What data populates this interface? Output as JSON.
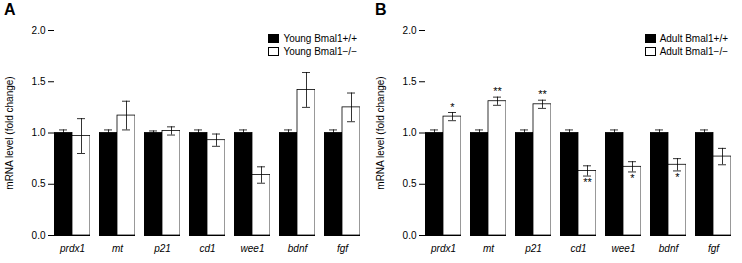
{
  "chart_data": [
    {
      "type": "bar",
      "title": "A",
      "categories": [
        "prdx1",
        "mt",
        "p21",
        "cd1",
        "wee1",
        "bdnf",
        "fgf"
      ],
      "series": [
        {
          "name": "Young Bmal1+/+",
          "color": "#000000",
          "values": [
            1.0,
            1.0,
            1.0,
            1.0,
            1.0,
            1.0,
            1.0
          ],
          "errors": [
            0.03,
            0.03,
            0.02,
            0.03,
            0.03,
            0.03,
            0.03
          ]
        },
        {
          "name": "Young Bmal1−/−",
          "color": "#ffffff",
          "values": [
            0.97,
            1.17,
            1.02,
            0.93,
            0.59,
            1.42,
            1.25
          ],
          "errors": [
            0.17,
            0.14,
            0.04,
            0.06,
            0.08,
            0.17,
            0.14
          ]
        }
      ],
      "ylabel": "mRNA level (fold change)",
      "ylim": [
        0.0,
        2.0
      ],
      "yticks": [
        {
          "value": 0.0,
          "label": "0.0"
        },
        0.5,
        {
          "value": 1.0,
          "label": "1.0"
        },
        1.5,
        {
          "value": 2.0,
          "label": "2.0"
        }
      ],
      "grid": false,
      "legend": "upper right",
      "annotations": []
    },
    {
      "type": "bar",
      "title": "B",
      "categories": [
        "prdx1",
        "mt",
        "p21",
        "cd1",
        "wee1",
        "bdnf",
        "fgf"
      ],
      "series": [
        {
          "name": "Adult Bmal1+/+",
          "color": "#000000",
          "values": [
            1.0,
            1.0,
            1.0,
            1.0,
            1.0,
            1.0,
            1.0
          ],
          "errors": [
            0.03,
            0.03,
            0.03,
            0.03,
            0.03,
            0.03,
            0.03
          ]
        },
        {
          "name": "Adult Bmal1−/−",
          "color": "#ffffff",
          "values": [
            1.16,
            1.31,
            1.28,
            0.63,
            0.67,
            0.69,
            0.77
          ],
          "errors": [
            0.04,
            0.04,
            0.04,
            0.05,
            0.05,
            0.06,
            0.08
          ]
        }
      ],
      "ylabel": "mRNA level (fold change)",
      "ylim": [
        0.0,
        2.0
      ],
      "yticks": [
        {
          "value": 0.0,
          "label": "0.0"
        },
        0.5,
        {
          "value": 1.0,
          "label": "1.0"
        },
        1.5,
        {
          "value": 2.0,
          "label": "2.0"
        }
      ],
      "grid": false,
      "legend": "upper right",
      "annotations": [
        {
          "category": "prdx1",
          "series": "Adult Bmal1−/−",
          "text": "*"
        },
        {
          "category": "mt",
          "series": "Adult Bmal1−/−",
          "text": "**"
        },
        {
          "category": "p21",
          "series": "Adult Bmal1−/−",
          "text": "**"
        },
        {
          "category": "cd1",
          "series": "Adult Bmal1−/−",
          "text": "**"
        },
        {
          "category": "wee1",
          "series": "Adult Bmal1−/−",
          "text": "*"
        },
        {
          "category": "bdnf",
          "series": "Adult Bmal1−/−",
          "text": "*"
        }
      ]
    }
  ]
}
